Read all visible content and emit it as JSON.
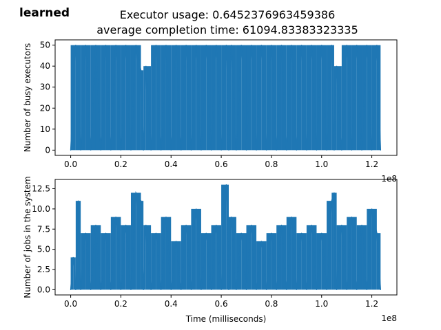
{
  "corner_label": "learned",
  "title": {
    "line1": "Executor usage: 0.6452376963459386",
    "line2": "average completion time: 61094.83383323335"
  },
  "colors": {
    "series": "#1f77b4",
    "axis": "#000000",
    "background": "#ffffff"
  },
  "chart_data": [
    {
      "type": "line",
      "ylabel": "Number of busy executors",
      "xlabel": "",
      "x_offset_label": "1e8",
      "xlim": [
        -0.062,
        1.3
      ],
      "ylim": [
        -2.5,
        52.5
      ],
      "xticks": [
        0.0,
        0.2,
        0.4,
        0.6,
        0.8,
        1.0,
        1.2
      ],
      "xtick_labels": [
        "0.0",
        "0.2",
        "0.4",
        "0.6",
        "0.8",
        "1.0",
        "1.2"
      ],
      "yticks": [
        0,
        10,
        20,
        30,
        40,
        50
      ],
      "ytick_labels": [
        "0",
        "10",
        "20",
        "30",
        "40",
        "50"
      ],
      "grid": false,
      "series": [
        {
          "x": [
            0.0,
            0.02,
            0.04,
            0.06,
            0.08,
            0.1,
            0.12,
            0.14,
            0.16,
            0.18,
            0.2,
            0.22,
            0.24,
            0.26,
            0.28,
            0.29,
            0.3,
            0.32,
            0.34,
            0.36,
            0.38,
            0.4,
            0.42,
            0.44,
            0.46,
            0.48,
            0.5,
            0.52,
            0.54,
            0.56,
            0.58,
            0.6,
            0.62,
            0.63,
            0.64,
            0.66,
            0.68,
            0.7,
            0.72,
            0.74,
            0.76,
            0.78,
            0.8,
            0.82,
            0.84,
            0.86,
            0.88,
            0.9,
            0.92,
            0.94,
            0.96,
            0.98,
            1.0,
            1.02,
            1.04,
            1.05,
            1.06,
            1.08,
            1.1,
            1.12,
            1.14,
            1.16,
            1.18,
            1.2,
            1.22,
            1.235
          ],
          "y": [
            0,
            50,
            0,
            50,
            0,
            50,
            0,
            50,
            0,
            50,
            0,
            50,
            0,
            50,
            38,
            0,
            40,
            0,
            50,
            0,
            50,
            0,
            50,
            0,
            50,
            0,
            50,
            0,
            50,
            0,
            50,
            0,
            50,
            0,
            50,
            0,
            50,
            0,
            50,
            0,
            50,
            0,
            50,
            0,
            50,
            0,
            50,
            0,
            50,
            0,
            50,
            0,
            50,
            0,
            50,
            0,
            40,
            0,
            50,
            0,
            50,
            0,
            50,
            0,
            50,
            0
          ]
        }
      ]
    },
    {
      "type": "line",
      "ylabel": "Number of jobs in the system",
      "xlabel": "Time (milliseconds)",
      "x_offset_label": "1e8",
      "xlim": [
        -0.062,
        1.3
      ],
      "ylim": [
        -0.65,
        13.65
      ],
      "xticks": [
        0.0,
        0.2,
        0.4,
        0.6,
        0.8,
        1.0,
        1.2
      ],
      "xtick_labels": [
        "0.0",
        "0.2",
        "0.4",
        "0.6",
        "0.8",
        "1.0",
        "1.2"
      ],
      "yticks": [
        0.0,
        2.5,
        5.0,
        7.5,
        10.0,
        12.5
      ],
      "ytick_labels": [
        "0.0",
        "2.5",
        "5.0",
        "7.5",
        "10.0",
        "12.5"
      ],
      "grid": false,
      "series": [
        {
          "x": [
            0.0,
            0.01,
            0.02,
            0.03,
            0.04,
            0.06,
            0.08,
            0.1,
            0.12,
            0.14,
            0.16,
            0.18,
            0.2,
            0.22,
            0.24,
            0.26,
            0.28,
            0.29,
            0.3,
            0.32,
            0.34,
            0.36,
            0.38,
            0.4,
            0.42,
            0.44,
            0.46,
            0.48,
            0.5,
            0.52,
            0.54,
            0.56,
            0.58,
            0.6,
            0.62,
            0.63,
            0.64,
            0.66,
            0.68,
            0.7,
            0.72,
            0.74,
            0.76,
            0.78,
            0.8,
            0.82,
            0.84,
            0.86,
            0.88,
            0.9,
            0.92,
            0.94,
            0.96,
            0.98,
            1.0,
            1.02,
            1.04,
            1.05,
            1.06,
            1.08,
            1.1,
            1.12,
            1.14,
            1.16,
            1.18,
            1.2,
            1.22,
            1.235
          ],
          "y": [
            0,
            4,
            0,
            11,
            0,
            7,
            0,
            8,
            0,
            7,
            0,
            9,
            0,
            8,
            0,
            12,
            11,
            0,
            8,
            0,
            7,
            0,
            9,
            0,
            6,
            0,
            8,
            0,
            10,
            0,
            7,
            0,
            8,
            0,
            13,
            0,
            9,
            0,
            7,
            0,
            8,
            0,
            6,
            0,
            7,
            0,
            8,
            0,
            9,
            0,
            7,
            0,
            8,
            0,
            7,
            0,
            11,
            12,
            0,
            8,
            0,
            9,
            0,
            8,
            0,
            10,
            7,
            0
          ]
        }
      ]
    }
  ]
}
